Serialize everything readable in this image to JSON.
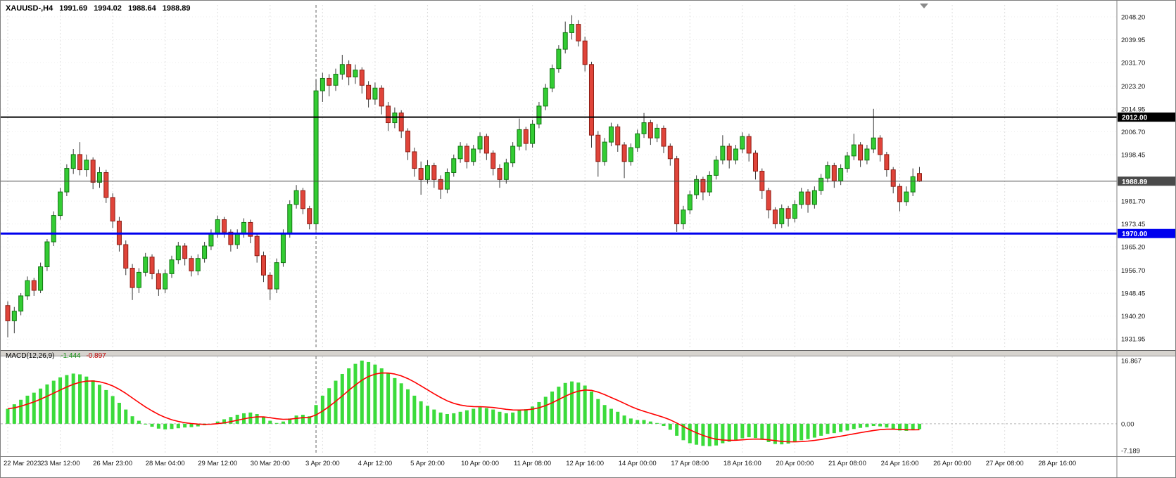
{
  "header": {
    "symbol_period": "XAUUSD-,H4",
    "open": "1991.69",
    "high": "1994.02",
    "low": "1988.64",
    "close": "1988.89"
  },
  "price_axis": {
    "labels": [
      "2048.20",
      "2039.95",
      "2031.70",
      "2023.20",
      "2014.95",
      "2006.70",
      "1998.45",
      "1981.70",
      "1973.45",
      "1965.20",
      "1956.70",
      "1948.45",
      "1940.20",
      "1931.95"
    ]
  },
  "time_axis": {
    "bars_per_gridline": 8,
    "labels": [
      "22 Mar 2023",
      "23 Mar 12:00",
      "26 Mar 23:00",
      "28 Mar 04:00",
      "29 Mar 12:00",
      "30 Mar 20:00",
      "3 Apr 20:00",
      "4 Apr 12:00",
      "5 Apr 20:00",
      "10 Apr 00:00",
      "11 Apr 08:00",
      "12 Apr 16:00",
      "14 Apr 00:00",
      "17 Apr 08:00",
      "18 Apr 16:00",
      "20 Apr 00:00",
      "21 Apr 08:00",
      "24 Apr 16:00",
      "26 Apr 00:00",
      "27 Apr 08:00",
      "28 Apr 16:00"
    ]
  },
  "hlines": [
    {
      "id": "hline-2012",
      "value": 2012.0,
      "tag": "2012.00",
      "color": "#000000",
      "width": 2
    },
    {
      "id": "hline-1970",
      "value": 1970.0,
      "tag": "1970.00",
      "color": "#0000ee",
      "width": 3
    }
  ],
  "bid_line": {
    "value": 1988.89,
    "tag": "1988.89",
    "color": "#4a4a4a",
    "width": 1
  },
  "vline": {
    "bar_index": 47,
    "color": "#666666"
  },
  "chart_data": {
    "type": "candlestick",
    "title": "XAUUSD- H4",
    "grid": true,
    "price_range": {
      "top": 2052.5,
      "bottom": 1928.2
    },
    "colors": {
      "up": "#33cc33",
      "up_border": "#117711",
      "down": "#e0443a",
      "down_border": "#8e1d14",
      "wick": "#3a3a3a"
    },
    "candles": [
      [
        1944.0,
        1945.5,
        1932.5,
        1938.5
      ],
      [
        1938.5,
        1943.5,
        1934.0,
        1942.0
      ],
      [
        1942.0,
        1948.5,
        1940.5,
        1947.5
      ],
      [
        1947.5,
        1954.5,
        1946.0,
        1953.0
      ],
      [
        1953.0,
        1954.0,
        1947.5,
        1949.5
      ],
      [
        1949.5,
        1959.5,
        1948.5,
        1958.0
      ],
      [
        1958.0,
        1968.0,
        1956.5,
        1967.0
      ],
      [
        1967.0,
        1978.0,
        1965.5,
        1976.5
      ],
      [
        1976.5,
        1986.5,
        1975.0,
        1985.0
      ],
      [
        1985.0,
        1995.0,
        1983.5,
        1993.5
      ],
      [
        1993.5,
        2000.5,
        1991.5,
        1998.5
      ],
      [
        1998.5,
        2003.0,
        1991.0,
        1993.0
      ],
      [
        1993.0,
        1998.5,
        1990.5,
        1996.5
      ],
      [
        1996.5,
        1997.5,
        1986.0,
        1988.5
      ],
      [
        1988.5,
        1994.0,
        1986.5,
        1992.0
      ],
      [
        1992.0,
        1993.0,
        1981.0,
        1983.0
      ],
      [
        1983.0,
        1984.5,
        1972.0,
        1974.5
      ],
      [
        1974.5,
        1976.0,
        1963.5,
        1966.0
      ],
      [
        1966.0,
        1967.5,
        1955.0,
        1957.5
      ],
      [
        1957.5,
        1959.0,
        1946.0,
        1950.5
      ],
      [
        1950.5,
        1957.5,
        1948.5,
        1956.0
      ],
      [
        1956.0,
        1963.0,
        1954.5,
        1961.5
      ],
      [
        1961.5,
        1962.5,
        1953.5,
        1955.5
      ],
      [
        1955.5,
        1957.0,
        1947.5,
        1950.0
      ],
      [
        1950.0,
        1957.0,
        1948.5,
        1955.5
      ],
      [
        1955.5,
        1962.0,
        1954.0,
        1960.5
      ],
      [
        1960.5,
        1967.0,
        1959.0,
        1965.5
      ],
      [
        1965.5,
        1966.5,
        1958.5,
        1961.0
      ],
      [
        1961.0,
        1962.0,
        1954.5,
        1956.5
      ],
      [
        1956.5,
        1962.5,
        1955.0,
        1961.0
      ],
      [
        1961.0,
        1967.0,
        1959.5,
        1965.5
      ],
      [
        1965.5,
        1971.5,
        1964.0,
        1970.0
      ],
      [
        1970.0,
        1976.5,
        1968.5,
        1975.0
      ],
      [
        1975.0,
        1976.0,
        1968.5,
        1970.5
      ],
      [
        1970.5,
        1971.5,
        1963.5,
        1966.0
      ],
      [
        1966.0,
        1971.5,
        1964.5,
        1970.0
      ],
      [
        1970.0,
        1975.5,
        1968.5,
        1974.0
      ],
      [
        1974.0,
        1975.0,
        1966.5,
        1969.0
      ],
      [
        1969.0,
        1970.0,
        1959.5,
        1962.0
      ],
      [
        1962.0,
        1963.5,
        1952.5,
        1955.0
      ],
      [
        1955.0,
        1956.0,
        1946.0,
        1950.0
      ],
      [
        1950.0,
        1961.0,
        1948.5,
        1959.5
      ],
      [
        1959.5,
        1971.5,
        1958.0,
        1970.0
      ],
      [
        1970.0,
        1982.0,
        1968.5,
        1980.5
      ],
      [
        1980.5,
        1987.5,
        1979.0,
        1985.5
      ],
      [
        1985.5,
        1986.5,
        1977.0,
        1979.0
      ],
      [
        1979.0,
        1980.0,
        1971.5,
        1973.5
      ],
      [
        1973.5,
        2025.5,
        1971.0,
        2021.5
      ],
      [
        2021.5,
        2028.0,
        2017.5,
        2026.0
      ],
      [
        2026.0,
        2027.5,
        2019.5,
        2023.5
      ],
      [
        2023.5,
        2029.5,
        2021.5,
        2027.5
      ],
      [
        2027.5,
        2034.5,
        2025.5,
        2031.0
      ],
      [
        2031.0,
        2032.5,
        2023.5,
        2026.5
      ],
      [
        2026.5,
        2031.0,
        2024.0,
        2029.0
      ],
      [
        2029.0,
        2030.0,
        2020.5,
        2023.5
      ],
      [
        2023.5,
        2025.0,
        2015.5,
        2018.5
      ],
      [
        2018.5,
        2024.5,
        2016.5,
        2022.5
      ],
      [
        2022.5,
        2023.5,
        2013.0,
        2016.0
      ],
      [
        2016.0,
        2017.5,
        2007.0,
        2010.0
      ],
      [
        2010.0,
        2015.5,
        2008.0,
        2013.5
      ],
      [
        2013.5,
        2014.5,
        2004.5,
        2007.0
      ],
      [
        2007.0,
        2008.0,
        1996.5,
        1999.5
      ],
      [
        1999.5,
        2001.0,
        1990.5,
        1993.5
      ],
      [
        1993.5,
        1996.0,
        1984.0,
        1989.5
      ],
      [
        1989.5,
        1996.5,
        1988.0,
        1994.5
      ],
      [
        1994.5,
        1995.5,
        1986.5,
        1989.5
      ],
      [
        1989.5,
        1991.0,
        1982.5,
        1986.0
      ],
      [
        1986.0,
        1993.5,
        1984.5,
        1992.0
      ],
      [
        1992.0,
        1998.5,
        1990.5,
        1997.0
      ],
      [
        1997.0,
        2003.0,
        1995.5,
        2001.5
      ],
      [
        2001.5,
        2002.5,
        1993.5,
        1996.0
      ],
      [
        1996.0,
        2002.0,
        1994.5,
        2000.5
      ],
      [
        2000.5,
        2006.5,
        1999.0,
        2005.0
      ],
      [
        2005.0,
        2006.0,
        1996.5,
        1999.0
      ],
      [
        1999.0,
        2000.0,
        1991.0,
        1993.5
      ],
      [
        1993.5,
        1995.0,
        1986.5,
        1989.5
      ],
      [
        1989.5,
        1997.0,
        1988.0,
        1995.5
      ],
      [
        1995.5,
        2003.0,
        1994.0,
        2001.5
      ],
      [
        2001.5,
        2011.5,
        2000.0,
        2007.5
      ],
      [
        2007.5,
        2008.5,
        2000.0,
        2002.5
      ],
      [
        2002.5,
        2011.0,
        2001.0,
        2009.5
      ],
      [
        2009.5,
        2017.5,
        2008.0,
        2016.0
      ],
      [
        2016.0,
        2024.0,
        2014.5,
        2022.5
      ],
      [
        2022.5,
        2031.0,
        2021.0,
        2029.5
      ],
      [
        2029.5,
        2038.0,
        2028.0,
        2036.5
      ],
      [
        2036.5,
        2046.5,
        2035.0,
        2042.5
      ],
      [
        2042.5,
        2048.8,
        2040.0,
        2045.5
      ],
      [
        2045.5,
        2047.0,
        2037.5,
        2039.5
      ],
      [
        2039.5,
        2041.0,
        2028.5,
        2031.0
      ],
      [
        2031.0,
        2032.0,
        2001.0,
        2005.5
      ],
      [
        2005.5,
        2007.0,
        1990.5,
        1996.0
      ],
      [
        1996.0,
        2004.5,
        1994.5,
        2003.0
      ],
      [
        2003.0,
        2010.0,
        2001.5,
        2008.5
      ],
      [
        2008.5,
        2009.5,
        1999.5,
        2002.0
      ],
      [
        2002.0,
        2003.0,
        1990.0,
        1996.0
      ],
      [
        1996.0,
        2002.5,
        1994.5,
        2001.0
      ],
      [
        2001.0,
        2007.5,
        1999.5,
        2006.0
      ],
      [
        2006.0,
        2013.5,
        2004.5,
        2010.0
      ],
      [
        2010.0,
        2011.0,
        2002.0,
        2004.5
      ],
      [
        2004.5,
        2009.5,
        2003.0,
        2008.0
      ],
      [
        2008.0,
        2009.0,
        1999.0,
        2001.5
      ],
      [
        2001.5,
        2002.5,
        1994.5,
        1997.0
      ],
      [
        1997.0,
        1998.0,
        1970.6,
        1973.5
      ],
      [
        1973.5,
        1980.0,
        1971.5,
        1978.5
      ],
      [
        1978.5,
        1985.5,
        1977.0,
        1984.0
      ],
      [
        1984.0,
        1991.0,
        1982.5,
        1989.5
      ],
      [
        1989.5,
        1990.5,
        1982.0,
        1985.0
      ],
      [
        1985.0,
        1992.5,
        1983.5,
        1991.0
      ],
      [
        1991.0,
        1998.0,
        1989.5,
        1996.5
      ],
      [
        1996.5,
        2005.5,
        1995.0,
        2001.5
      ],
      [
        2001.5,
        2002.5,
        1993.5,
        1996.5
      ],
      [
        1996.5,
        2002.0,
        1995.0,
        2000.5
      ],
      [
        2000.5,
        2006.5,
        1999.0,
        2005.0
      ],
      [
        2005.0,
        2006.0,
        1996.0,
        1999.0
      ],
      [
        1999.0,
        2000.0,
        1989.5,
        1992.5
      ],
      [
        1992.5,
        1993.5,
        1982.5,
        1985.5
      ],
      [
        1985.5,
        1986.5,
        1975.5,
        1978.5
      ],
      [
        1978.5,
        1979.5,
        1971.8,
        1973.5
      ],
      [
        1973.5,
        1980.5,
        1972.0,
        1979.0
      ],
      [
        1979.0,
        1980.0,
        1972.5,
        1975.5
      ],
      [
        1975.5,
        1982.0,
        1974.0,
        1980.5
      ],
      [
        1980.5,
        1986.5,
        1979.0,
        1985.0
      ],
      [
        1985.0,
        1986.0,
        1977.5,
        1980.5
      ],
      [
        1980.5,
        1987.0,
        1979.0,
        1985.5
      ],
      [
        1985.5,
        1991.5,
        1984.0,
        1990.0
      ],
      [
        1990.0,
        1996.0,
        1988.5,
        1994.5
      ],
      [
        1994.5,
        1995.5,
        1986.5,
        1989.0
      ],
      [
        1989.0,
        1995.0,
        1987.5,
        1993.5
      ],
      [
        1993.5,
        1999.5,
        1992.0,
        1998.0
      ],
      [
        1998.0,
        2006.0,
        1996.5,
        2002.0
      ],
      [
        2002.0,
        2003.0,
        1994.0,
        1996.5
      ],
      [
        1996.5,
        2002.0,
        1995.0,
        2000.5
      ],
      [
        2000.5,
        2015.0,
        1999.0,
        2004.5
      ],
      [
        2004.5,
        2005.5,
        1996.0,
        1998.5
      ],
      [
        1998.5,
        1999.5,
        1990.5,
        1993.0
      ],
      [
        1993.0,
        1994.0,
        1984.5,
        1987.0
      ],
      [
        1987.0,
        1988.0,
        1978.0,
        1981.5
      ],
      [
        1981.5,
        1987.0,
        1980.0,
        1985.0
      ],
      [
        1985.0,
        1993.5,
        1983.5,
        1990.5
      ],
      [
        1991.69,
        1994.02,
        1988.64,
        1988.89
      ]
    ],
    "macd": {
      "label": "MACD(12,26,9)",
      "value_main": "-1.444",
      "value_signal": "-0.897",
      "signal_period": 9,
      "axis_labels": [
        "16.867",
        "0.00",
        "-7.189"
      ],
      "range": {
        "top": 17.99,
        "bottom": -8.29
      },
      "hist_color": "#3bdb3b",
      "signal_color": "#ff0000",
      "histogram": [
        4.0,
        5.2,
        6.4,
        7.5,
        8.3,
        9.4,
        10.5,
        11.5,
        12.4,
        13.0,
        13.4,
        13.2,
        12.6,
        11.6,
        10.4,
        9.0,
        7.4,
        5.6,
        3.8,
        2.0,
        0.8,
        -0.2,
        -0.8,
        -1.3,
        -1.5,
        -1.4,
        -1.2,
        -1.0,
        -0.9,
        -0.7,
        -0.4,
        0.0,
        0.6,
        1.2,
        1.8,
        2.4,
        2.8,
        3.0,
        2.6,
        1.8,
        0.8,
        0.2,
        0.6,
        1.4,
        2.2,
        2.4,
        2.0,
        5.0,
        7.5,
        9.5,
        11.5,
        13.3,
        14.8,
        16.0,
        16.87,
        16.5,
        15.8,
        14.8,
        13.5,
        12.2,
        10.8,
        9.2,
        7.5,
        6.0,
        4.8,
        3.8,
        3.0,
        2.6,
        2.8,
        3.2,
        3.6,
        4.0,
        4.4,
        4.2,
        3.8,
        3.2,
        2.8,
        3.0,
        3.6,
        3.9,
        4.6,
        5.8,
        7.2,
        8.6,
        9.9,
        10.9,
        11.3,
        11.0,
        10.2,
        8.6,
        6.6,
        5.0,
        4.0,
        3.2,
        2.2,
        1.4,
        1.0,
        1.0,
        0.6,
        0.2,
        -0.6,
        -1.6,
        -3.2,
        -4.4,
        -5.2,
        -5.6,
        -5.9,
        -6.0,
        -5.8,
        -5.2,
        -4.8,
        -4.3,
        -3.9,
        -3.6,
        -3.8,
        -4.3,
        -4.9,
        -5.4,
        -5.5,
        -5.3,
        -4.9,
        -4.4,
        -4.1,
        -3.7,
        -3.2,
        -2.7,
        -2.5,
        -2.2,
        -1.8,
        -1.4,
        -1.1,
        -0.9,
        -0.6,
        -0.7,
        -1.0,
        -1.4,
        -1.8,
        -1.9,
        -1.7,
        -1.444
      ]
    }
  }
}
